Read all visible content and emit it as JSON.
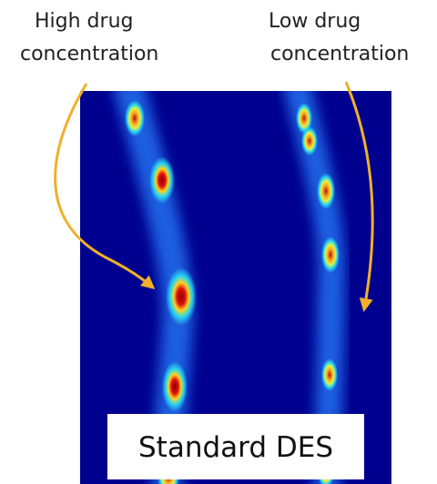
{
  "annotations": [
    {
      "lines": [
        "High drug",
        "concentration"
      ]
    },
    {
      "lines": [
        "Low drug",
        "concentration"
      ]
    }
  ],
  "caption": "Standard DES"
}
